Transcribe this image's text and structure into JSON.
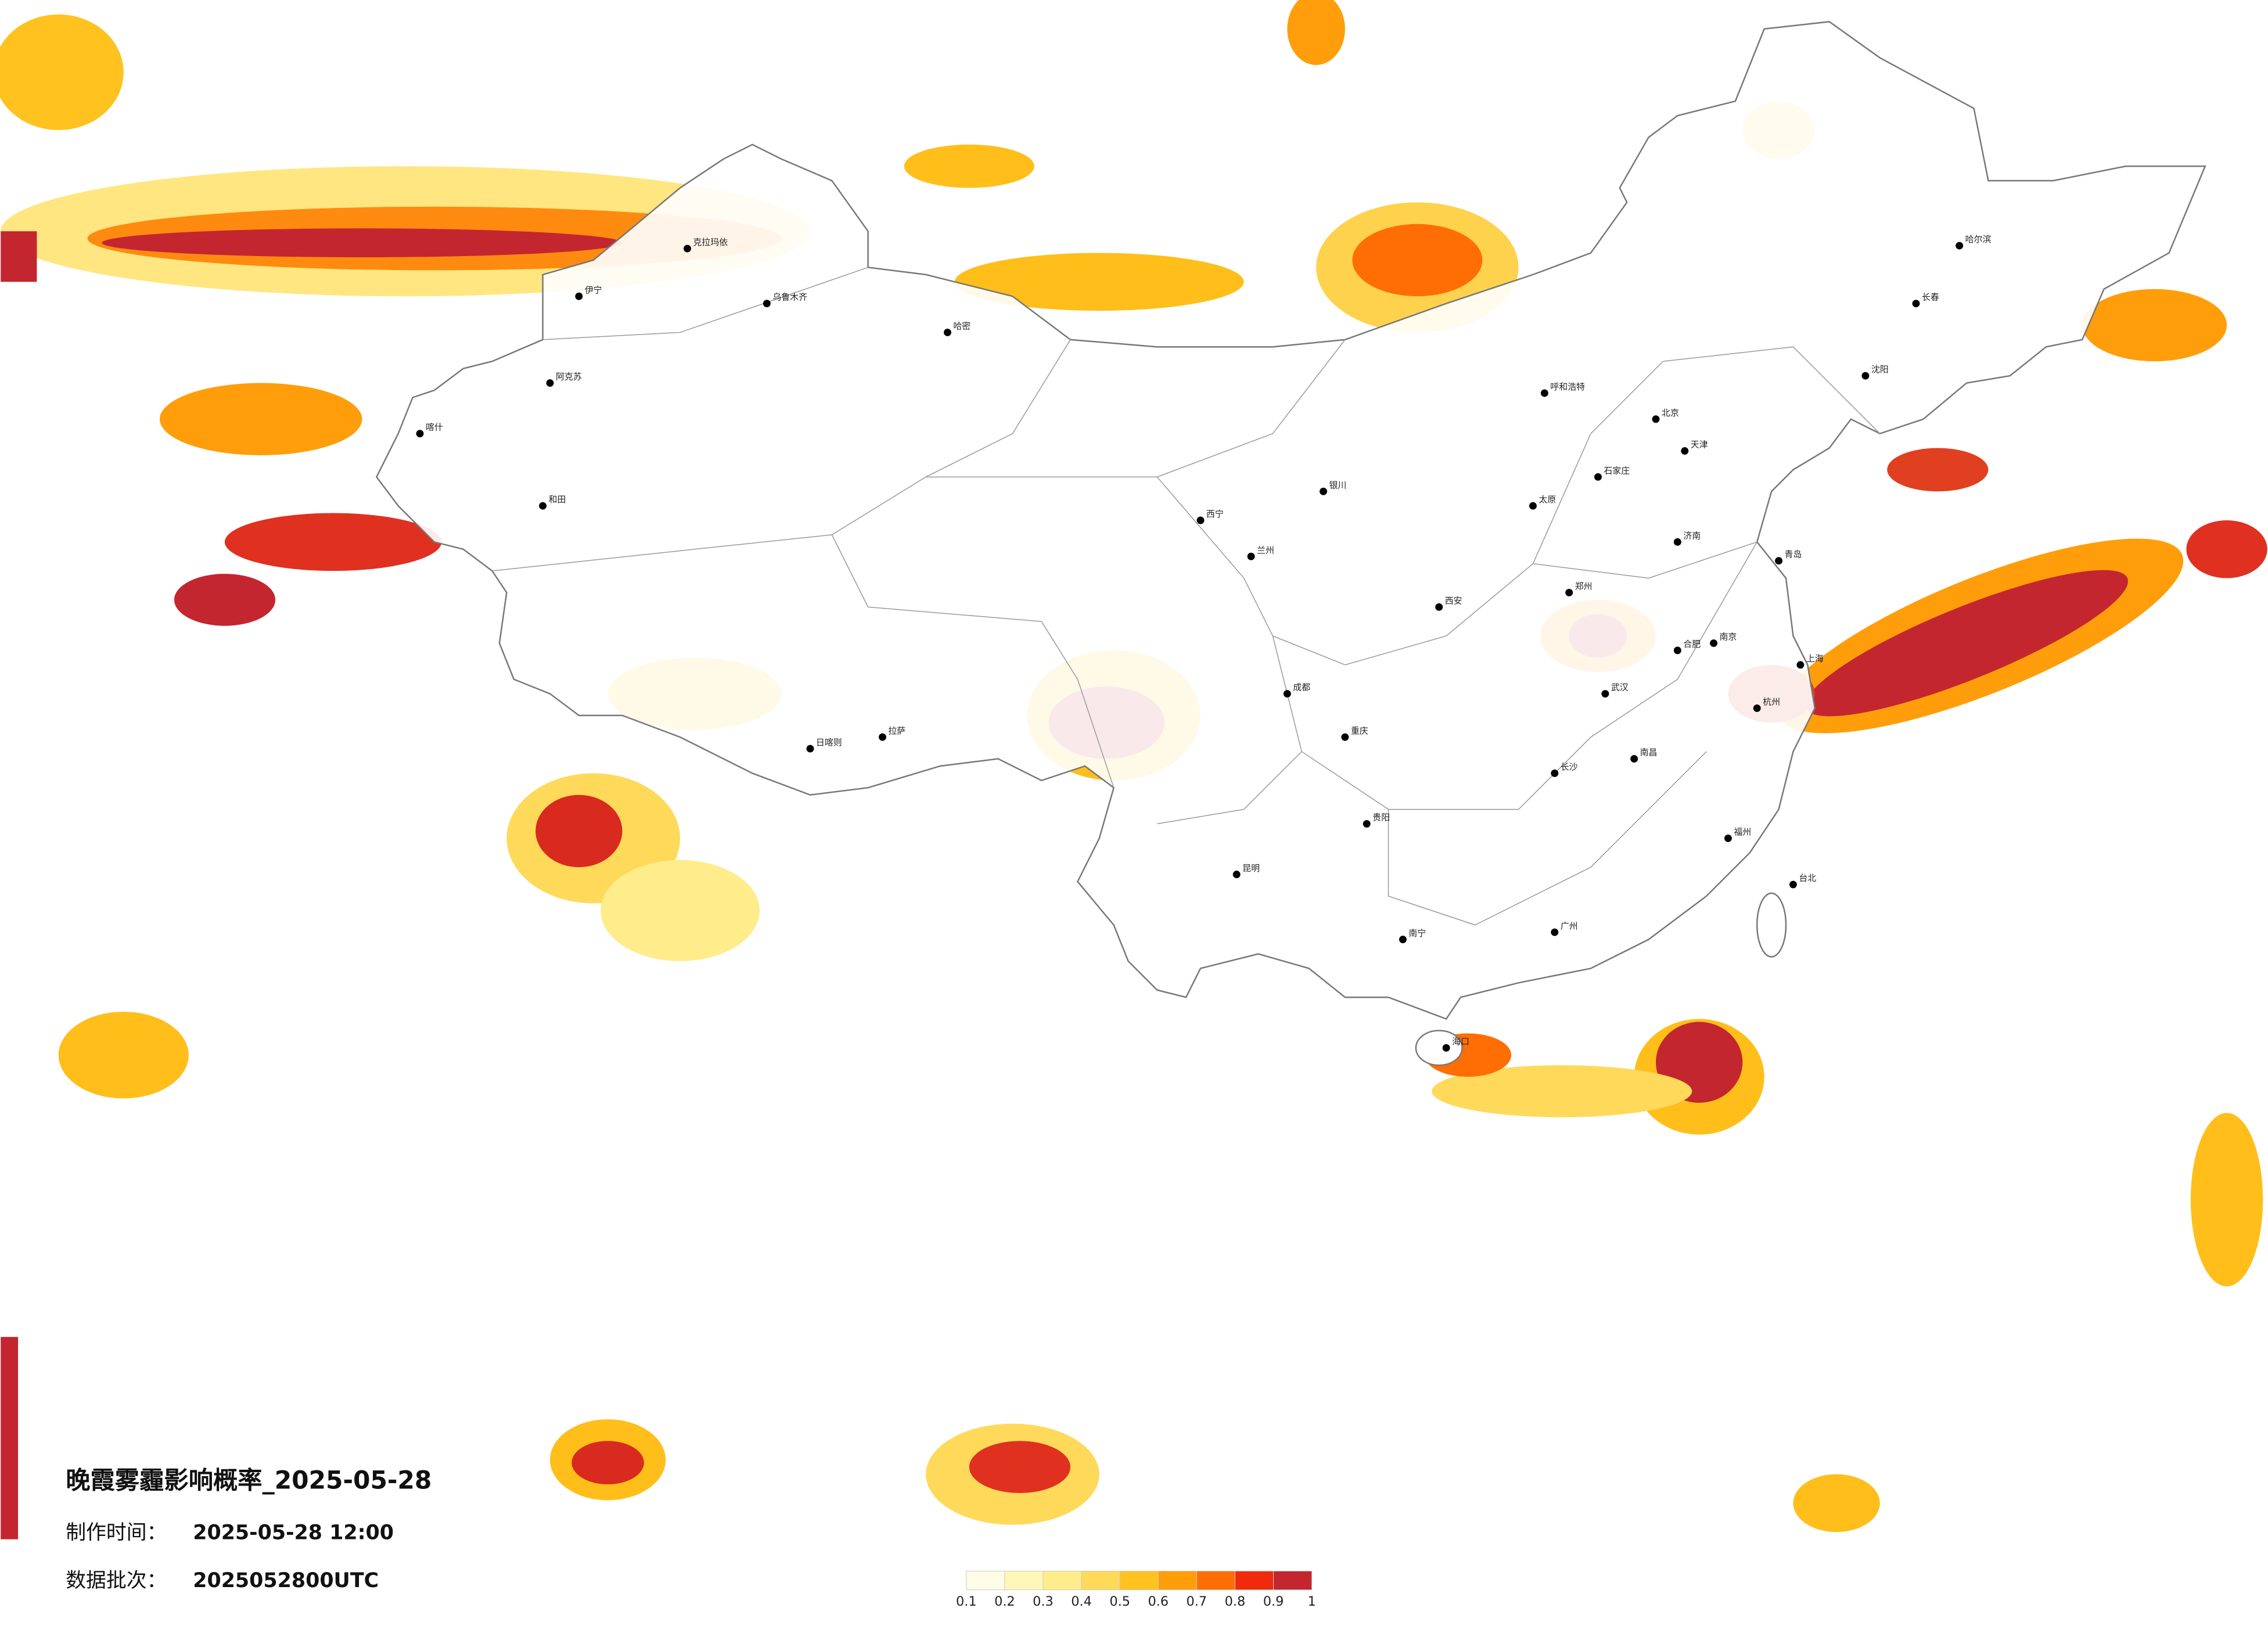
{
  "title": "晚霞雾霾影响概率_2025-05-28",
  "made_time": {
    "label": "制作时间：",
    "value": "2025-05-28 12:00"
  },
  "batch": {
    "label": "数据批次：",
    "value": "2025052800UTC"
  },
  "legend": {
    "labels": [
      0.1,
      0.2,
      0.3,
      0.4,
      0.5,
      0.6,
      0.7,
      0.8,
      0.9,
      1
    ],
    "colors": [
      "#fffce6",
      "#fff6b8",
      "#ffec8a",
      "#ffd95a",
      "#ffc21e",
      "#ff9e0a",
      "#ff6e05",
      "#f02a0a",
      "#c3262f"
    ]
  },
  "cities": [
    "北京",
    "天津",
    "石家庄",
    "太原",
    "郑州",
    "武汉",
    "长沙",
    "南昌",
    "合肥",
    "南京",
    "上海",
    "杭州",
    "福州",
    "广州",
    "南宁",
    "贵阳",
    "昆明",
    "成都",
    "重庆",
    "西安",
    "兰州",
    "西宁",
    "银川",
    "呼和浩特",
    "沈阳",
    "长春",
    "哈尔滨",
    "乌鲁木齐",
    "拉萨",
    "海口",
    "台北",
    "喀什",
    "和田",
    "阿克苏",
    "伊宁",
    "克拉玛依",
    "哈密",
    "日喀则",
    "济南",
    "青岛"
  ]
}
